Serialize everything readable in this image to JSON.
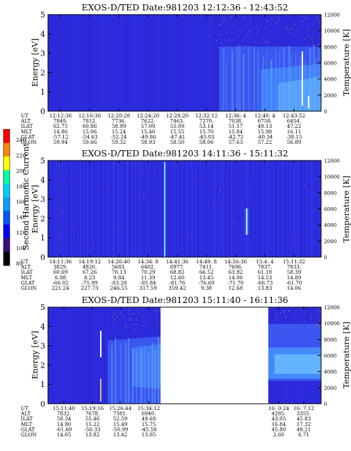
{
  "cbar": {
    "label": "Second Harmonic Current",
    "ticks": [
      "240",
      "220",
      "200",
      "180",
      "160",
      "140",
      "120",
      "100",
      "80"
    ],
    "colors": [
      "#ff0000",
      "#ff8800",
      "#ffff00",
      "#00ffa0",
      "#00d0ff",
      "#00a0ff",
      "#0055ff",
      "#0000ff",
      "#3a0f7a",
      "#000000"
    ]
  },
  "colors": {
    "background": "#2b2bdc",
    "band": "#3a55f0",
    "band_hi": "#4aa0ff",
    "band_max": "#7fe0ff",
    "streak": "#ffffff",
    "dots": "#b36a7a"
  },
  "chart_data": [
    {
      "type": "heatmap",
      "title": "EXOS-D/TED   Date:981203   12:12:36 - 12:43:52",
      "ylabel": "Energy [eV]",
      "ylabel_right": "Temperature [K]",
      "ylim": [
        0,
        5
      ],
      "ylim_right": [
        0,
        12000
      ],
      "yticks": [
        "0",
        "1",
        "2",
        "3",
        "4",
        "5"
      ],
      "yticks_right": [
        "0",
        "2000",
        "4000",
        "6000",
        "8000",
        "10000",
        "12000"
      ],
      "row_labels": [
        "UT",
        "ALT",
        "ILAT",
        "MLT",
        "GLAT",
        "GLON"
      ],
      "columns": [
        [
          "12:12:36",
          "7849.",
          "62.75",
          "14.86",
          "-57.12",
          "59.94"
        ],
        [
          "12:16:36",
          "7812.",
          "60.86",
          "15.06",
          "-54.63",
          "59.66"
        ],
        [
          "12:20:28",
          "7736.",
          "58.99",
          "15.24",
          "-52.24",
          "59.32"
        ],
        [
          "12:24:20",
          "7622.",
          "57.09",
          "15.40",
          "-49.86",
          "58.93"
        ],
        [
          "12:28:20",
          "7463.",
          "55.09",
          "15.55",
          "-47.41",
          "58.50"
        ],
        [
          "12:32:12",
          "7270.",
          "53.14",
          "15.70",
          "-45.03",
          "58.06"
        ],
        [
          "12:36: 4",
          "7038.",
          "51.17",
          "15.84",
          "-42.72",
          "57.63"
        ],
        [
          "12:40: 4",
          "6758.",
          "49.13",
          "15.98",
          "-40.34",
          "57.22"
        ],
        [
          "12:43:52",
          "6454.",
          "47.22",
          "16.11",
          "-38.15",
          "56.89"
        ]
      ]
    },
    {
      "type": "heatmap",
      "title": "EXOS-D/TED   Date:981203   14:11:36 - 15:11:32",
      "ylabel": "Energy [eV]",
      "ylabel_right": "Temperature [K]",
      "ylim": [
        0,
        5
      ],
      "ylim_right": [
        0,
        12000
      ],
      "yticks": [
        "0",
        "1",
        "2",
        "3",
        "4",
        "5"
      ],
      "yticks_right": [
        "0",
        "2000",
        "4000",
        "6000",
        "8000",
        "10000",
        "12000"
      ],
      "row_labels": [
        "UT",
        "ALT",
        "ILAT",
        "MLT",
        "GLAT",
        "GLON"
      ],
      "columns": [
        [
          "14:11:36",
          "3829.",
          "60.69",
          "6.88",
          "-66.02",
          "221.24"
        ],
        [
          "14:19:12",
          "4826.",
          "67.26",
          "8.23",
          "-75.99",
          "227.73"
        ],
        [
          "14:26:40",
          "5683.",
          "70.13",
          "9.84",
          "-83.28",
          "246.55"
        ],
        [
          "14:34: 8",
          "6402.",
          "70.29",
          "11.39",
          "-85.84",
          "317.59"
        ],
        [
          "14:41:36",
          "6977.",
          "68.82",
          "12.60",
          "-81.76",
          "359.42"
        ],
        [
          "14:49: 8",
          "7411.",
          "66.52",
          "13.45",
          "-76.69",
          "9.38"
        ],
        [
          "14:56:36",
          "7696.",
          "63.92",
          "14.06",
          "-71.70",
          "12.68"
        ],
        [
          "15:4: 4",
          "7837.",
          "61.18",
          "14.53",
          "-66.73",
          "13.83"
        ],
        [
          "15:11:32",
          "7833.",
          "58.39",
          "14.89",
          "-61.70",
          "14.06"
        ]
      ]
    },
    {
      "type": "heatmap",
      "title": "EXOS-D/TED   Date:981203   15:11:40 - 16:11:36",
      "ylabel": "Energy [eV]",
      "ylabel_right": "Temperature [K]",
      "ylim": [
        0,
        5
      ],
      "ylim_right": [
        0,
        12000
      ],
      "yticks": [
        "0",
        "1",
        "2",
        "3",
        "4",
        "5"
      ],
      "yticks_right": [
        "0",
        "2000",
        "4000",
        "6000",
        "8000",
        "10000",
        "12000"
      ],
      "row_labels": [
        "UT",
        "ALT",
        "ILAT",
        "MLT",
        "GLAT",
        "GLON"
      ],
      "columns": [
        [
          "15:11:40",
          "7832.",
          "58.34",
          "14.90",
          "-61.60",
          "14.05"
        ],
        [
          "15:19:16",
          "7678.",
          "55.46",
          "15.22",
          "-56.33",
          "13.82"
        ],
        [
          "15:26:44",
          "7381.",
          "52.59",
          "15.49",
          "-50.99",
          "13.42"
        ],
        [
          "15:34:12",
          "6940.",
          "49.68",
          "15.75",
          "-45.58",
          "13.05"
        ],
        [
          "16: 0:24",
          "4285.",
          "43.05",
          "16.84",
          "45.80",
          "2.60"
        ],
        [
          "16: 7:12",
          "3355.",
          "45.83",
          "17.32",
          "48.21",
          "6.71"
        ]
      ]
    }
  ]
}
